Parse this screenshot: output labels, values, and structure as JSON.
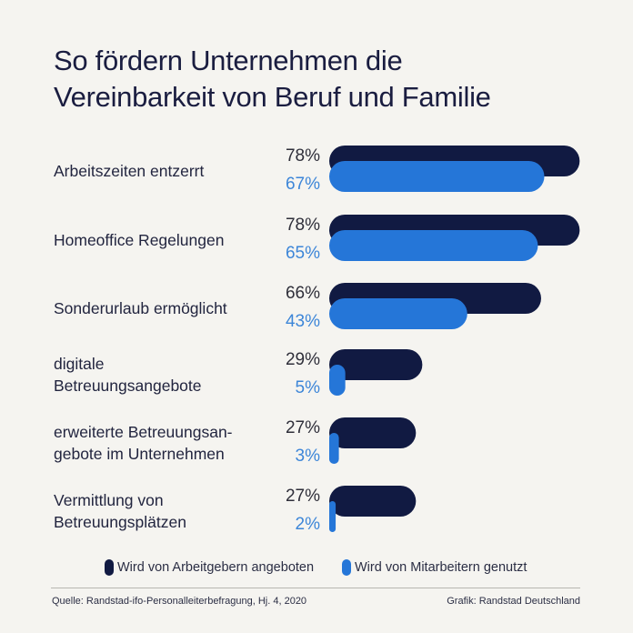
{
  "chart_data": {
    "type": "bar",
    "orientation": "horizontal",
    "title": "So fördern Unternehmen die Vereinbarkeit von Beruf und Familie",
    "categories": [
      [
        "Arbeitszeiten entzerrt"
      ],
      [
        "Homeoffice Regelungen"
      ],
      [
        "Sonderurlaub ermöglicht"
      ],
      [
        "digitale",
        "Betreuungsangebote"
      ],
      [
        "erweiterte Betreuungsan-",
        "gebote im Unternehmen"
      ],
      [
        "Vermittlung von",
        "Betreuungsplätzen"
      ]
    ],
    "series": [
      {
        "name": "Wird von Arbeitgebern angeboten",
        "color": "#111a42",
        "values": [
          78,
          78,
          66,
          29,
          27,
          27
        ]
      },
      {
        "name": "Wird von Mitarbeitern genutzt",
        "color": "#2576d8",
        "values": [
          67,
          65,
          43,
          5,
          3,
          2
        ]
      }
    ],
    "value_labels": {
      "offered": [
        "78%",
        "78%",
        "66%",
        "29%",
        "27%",
        "27%"
      ],
      "used": [
        "67%",
        "65%",
        "43%",
        "5%",
        "3%",
        "2%"
      ]
    },
    "xlim": [
      0,
      100
    ],
    "legend": "bottom",
    "grid": false
  },
  "footer": {
    "source": "Quelle: Randstad-ifo-Personalleiterbefragung, Hj. 4, 2020",
    "credit": "Grafik: Randstad Deutschland"
  },
  "colors": {
    "background": "#f5f4f0",
    "offered": "#111a42",
    "used": "#2576d8",
    "used_label": "#3d86d8"
  }
}
